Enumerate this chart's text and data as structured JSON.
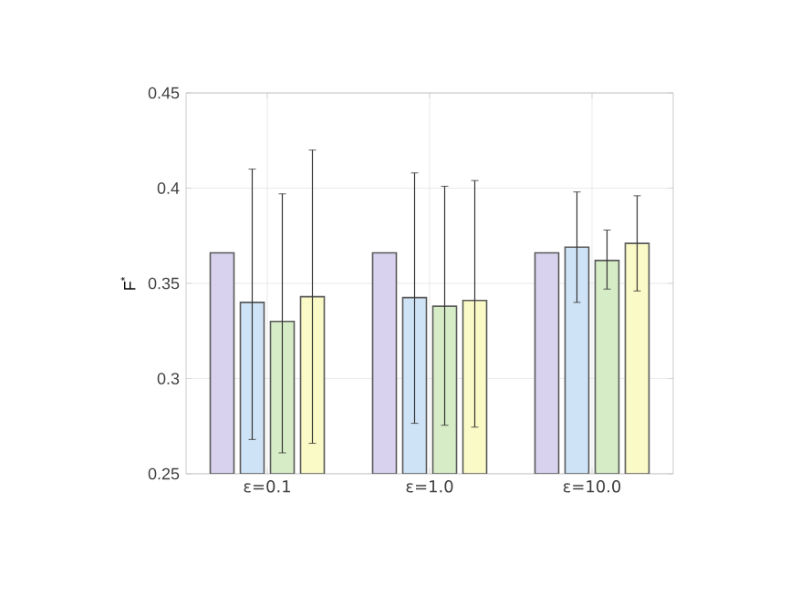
{
  "chart_data": {
    "type": "bar",
    "ylabel": "F$^{*}$",
    "categories": [
      "ε=0.1",
      "ε=1.0",
      "ε=10.0"
    ],
    "series": [
      {
        "color": "#d8d2ee",
        "values": [
          0.366,
          0.366,
          0.366
        ]
      },
      {
        "color": "#cfe3f6",
        "values": [
          0.34,
          0.3425,
          0.369
        ],
        "errors": [
          [
            0.268,
            0.41
          ],
          [
            0.2765,
            0.408
          ],
          [
            0.34,
            0.398
          ]
        ]
      },
      {
        "color": "#d6ecc6",
        "values": [
          0.33,
          0.338,
          0.362
        ],
        "errors": [
          [
            0.261,
            0.397
          ],
          [
            0.2755,
            0.401
          ],
          [
            0.347,
            0.378
          ]
        ]
      },
      {
        "color": "#fafac6",
        "values": [
          0.343,
          0.341,
          0.371
        ],
        "errors": [
          [
            0.266,
            0.42
          ],
          [
            0.2745,
            0.404
          ],
          [
            0.346,
            0.396
          ]
        ]
      }
    ],
    "ylim": [
      0.25,
      0.45
    ],
    "yticks": [
      0.25,
      0.3,
      0.35,
      0.4,
      0.45
    ],
    "grid": true
  }
}
